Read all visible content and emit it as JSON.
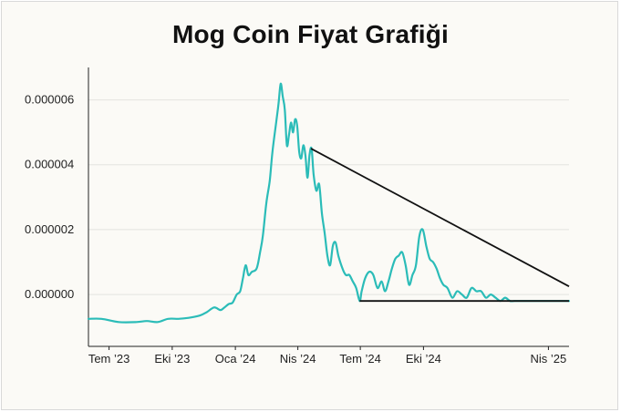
{
  "chart_data": {
    "type": "line",
    "title": "Mog Coin Fiyat Grafiği",
    "xlabel": "",
    "ylabel": "",
    "x_tick_labels": [
      "Tem ’23",
      "Eki ’23",
      "Oca ’24",
      "Nis ’24",
      "Tem ’24",
      "Eki ’24",
      "Nis ’25"
    ],
    "x_tick_dates": [
      "2023-07-01",
      "2023-10-01",
      "2024-01-01",
      "2024-04-01",
      "2024-07-01",
      "2024-10-01",
      "2025-04-01"
    ],
    "y_tick_labels": [
      "0.000006",
      "0.000004",
      "0.000002",
      "0.000000"
    ],
    "y_ticks": [
      6e-06,
      4e-06,
      2e-06,
      0.0
    ],
    "ylim": [
      -1.6e-06,
      7e-06
    ],
    "xlim": [
      "2023-06-01",
      "2025-05-01"
    ],
    "grid": true,
    "series": [
      {
        "color": "#2bbcb8",
        "x": [
          "2023-06-01",
          "2023-06-20",
          "2023-07-15",
          "2023-08-10",
          "2023-08-25",
          "2023-09-10",
          "2023-09-25",
          "2023-10-10",
          "2023-10-25",
          "2023-11-10",
          "2023-11-20",
          "2023-12-01",
          "2023-12-10",
          "2023-12-15",
          "2023-12-22",
          "2023-12-28",
          "2024-01-03",
          "2024-01-08",
          "2024-01-12",
          "2024-01-16",
          "2024-01-20",
          "2024-01-25",
          "2024-02-01",
          "2024-02-06",
          "2024-02-10",
          "2024-02-15",
          "2024-02-20",
          "2024-02-24",
          "2024-03-01",
          "2024-03-04",
          "2024-03-07",
          "2024-03-10",
          "2024-03-13",
          "2024-03-16",
          "2024-03-19",
          "2024-03-22",
          "2024-03-25",
          "2024-03-28",
          "2024-03-31",
          "2024-04-03",
          "2024-04-06",
          "2024-04-09",
          "2024-04-12",
          "2024-04-15",
          "2024-04-18",
          "2024-04-21",
          "2024-04-24",
          "2024-04-28",
          "2024-05-02",
          "2024-05-06",
          "2024-05-10",
          "2024-05-14",
          "2024-05-18",
          "2024-05-22",
          "2024-05-26",
          "2024-05-30",
          "2024-06-05",
          "2024-06-10",
          "2024-06-15",
          "2024-06-20",
          "2024-06-25",
          "2024-06-30",
          "2024-07-03",
          "2024-07-08",
          "2024-07-14",
          "2024-07-20",
          "2024-07-26",
          "2024-08-01",
          "2024-08-06",
          "2024-08-11",
          "2024-08-16",
          "2024-08-21",
          "2024-08-26",
          "2024-08-31",
          "2024-09-05",
          "2024-09-10",
          "2024-09-15",
          "2024-09-20",
          "2024-09-25",
          "2024-09-30",
          "2024-10-05",
          "2024-10-10",
          "2024-10-15",
          "2024-10-20",
          "2024-10-25",
          "2024-10-30",
          "2024-11-05",
          "2024-11-12",
          "2024-11-19",
          "2024-11-26",
          "2024-12-03",
          "2024-12-10",
          "2024-12-17",
          "2024-12-24",
          "2024-12-31",
          "2025-01-07",
          "2025-01-14",
          "2025-01-21",
          "2025-01-28",
          "2025-02-04",
          "2025-02-11",
          "2025-02-18",
          "2025-02-25",
          "2025-03-04",
          "2025-03-11",
          "2025-03-18",
          "2025-03-25",
          "2025-04-01",
          "2025-04-08",
          "2025-04-15",
          "2025-04-22",
          "2025-05-01"
        ],
        "values": [
          -7.5e-07,
          -7.5e-07,
          -8.5e-07,
          -8.5e-07,
          -8.2e-07,
          -8.5e-07,
          -7.5e-07,
          -7.5e-07,
          -7.2e-07,
          -6.5e-07,
          -5.5e-07,
          -4e-07,
          -4.8e-07,
          -4.2e-07,
          -3e-07,
          -2.5e-07,
          0.0,
          1e-07,
          5e-07,
          9e-07,
          6e-07,
          7e-07,
          8e-07,
          1.3e-06,
          1.8e-06,
          2.8e-06,
          3.5e-06,
          4.4e-06,
          5.4e-06,
          5.9e-06,
          6.5e-06,
          6.1e-06,
          5.7e-06,
          4.6e-06,
          4.9e-06,
          5.3e-06,
          5e-06,
          5.4e-06,
          5.2e-06,
          4.4e-06,
          4.2e-06,
          4.6e-06,
          4.3e-06,
          3.6e-06,
          4.3e-06,
          4.5e-06,
          3.7e-06,
          3.2e-06,
          3.4e-06,
          2.5e-06,
          1.9e-06,
          1.2e-06,
          9e-07,
          1.5e-06,
          1.6e-06,
          1.2e-06,
          8e-07,
          6e-07,
          6e-07,
          4e-07,
          2e-07,
          -2e-07,
          1e-07,
          5e-07,
          7e-07,
          6e-07,
          2e-07,
          4e-07,
          1e-07,
          4e-07,
          8e-07,
          1.1e-06,
          1.2e-06,
          1.3e-06,
          9e-07,
          3e-07,
          6e-07,
          9e-07,
          1.8e-06,
          2e-06,
          1.5e-06,
          1.1e-06,
          1e-06,
          8e-07,
          5e-07,
          3e-07,
          2e-07,
          -1e-07,
          1e-07,
          0.0,
          -1e-07,
          2e-07,
          1e-07,
          1e-07,
          -1e-07,
          0.0,
          -1e-07,
          -2e-07,
          -1e-07,
          -2e-07,
          -2e-07,
          -2e-07,
          -2e-07,
          -2e-07,
          -2e-07,
          -2e-07,
          -2e-07,
          -2e-07,
          -2e-07,
          -2e-07,
          -2e-07,
          -2e-07
        ]
      }
    ],
    "annotations": [
      {
        "type": "line",
        "color": "#111111",
        "x": [
          "2024-04-20",
          "2025-05-01"
        ],
        "y": [
          4.5e-06,
          2.5e-07
        ]
      },
      {
        "type": "line",
        "color": "#111111",
        "x": [
          "2024-06-30",
          "2025-05-01"
        ],
        "y": [
          -2e-07,
          -2e-07
        ]
      }
    ]
  }
}
